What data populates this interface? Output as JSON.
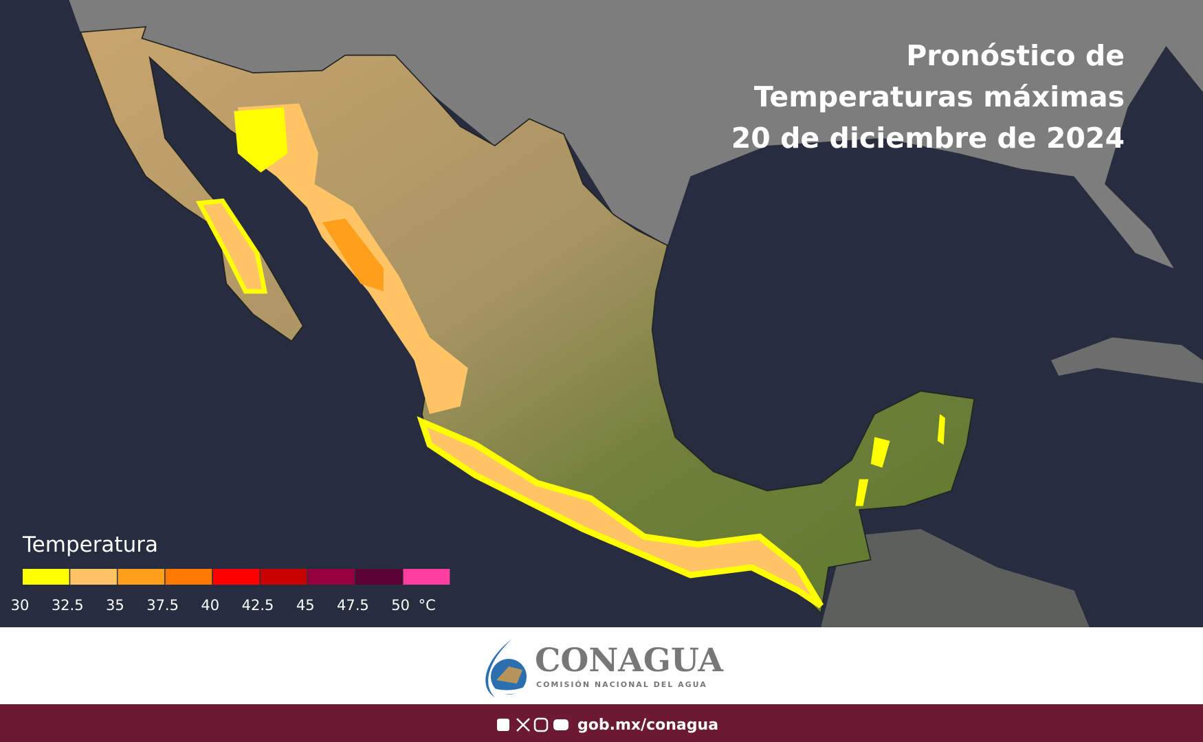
{
  "title": {
    "lines": [
      "Pronóstico de",
      "Temperaturas máximas",
      "20 de diciembre de 2024"
    ]
  },
  "legend": {
    "title": "Temperatura",
    "ticks": [
      30,
      32.5,
      35,
      37.5,
      40,
      42.5,
      45,
      47.5,
      50
    ],
    "unit": "°C",
    "colors": [
      "#ffff00",
      "#ffc466",
      "#ff9f1c",
      "#ff7a00",
      "#ff0000",
      "#c80000",
      "#96003c",
      "#5a0032",
      "#ff3fa0"
    ]
  },
  "logo": {
    "name": "CONAGUA",
    "subtitle": "COMISIÓN NACIONAL DEL AGUA"
  },
  "footer": {
    "url": "gob.mx/conagua"
  }
}
